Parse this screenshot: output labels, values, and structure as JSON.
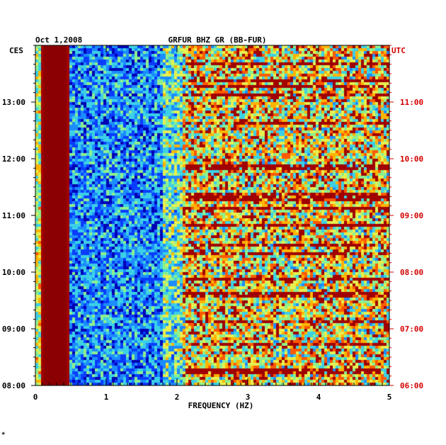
{
  "chart_data": {
    "type": "heatmap",
    "title": "GRFUR BHZ GR (BB-FUR)",
    "date": "Oct 1,2008",
    "xlabel": "FREQUENCY (HZ)",
    "xlim": [
      0,
      5
    ],
    "x_ticks": [
      "0",
      "1",
      "2",
      "3",
      "4",
      "5"
    ],
    "left_axis": {
      "label": "CES",
      "range_hours": [
        8,
        14
      ],
      "ticks": [
        "08:00",
        "09:00",
        "10:00",
        "11:00",
        "12:00",
        "13:00"
      ]
    },
    "right_axis": {
      "label": "UTC",
      "range_hours": [
        6,
        12
      ],
      "ticks": [
        "06:00",
        "07:00",
        "08:00",
        "09:00",
        "10:00",
        "11:00"
      ],
      "color": "#d40000"
    },
    "colormap": [
      "#0000b4",
      "#0a3cff",
      "#1c8cff",
      "#3cd0e6",
      "#8ef08e",
      "#e6f050",
      "#ffb400",
      "#ff5a00",
      "#a00000"
    ],
    "features": {
      "low_freq_band_hz": [
        0.12,
        0.45
      ],
      "low_freq_band_color": "#8b0000",
      "quiet_band_hz": [
        0.5,
        1.8
      ],
      "high_noise_start_hz": 2.1
    },
    "corner_mark": "*"
  }
}
